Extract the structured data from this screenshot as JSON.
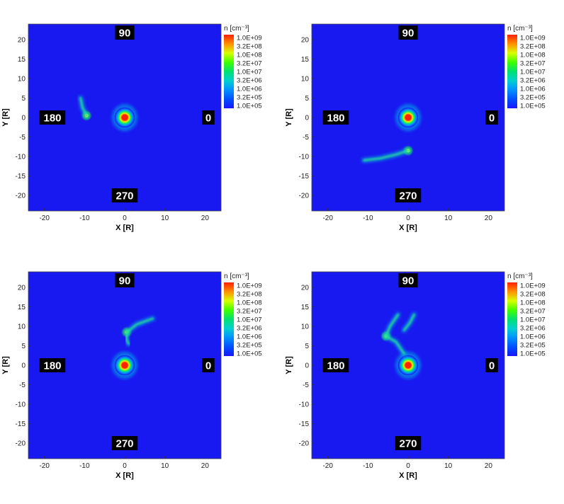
{
  "chart_data": [
    {
      "type": "heatmap",
      "xlabel": "X [R]",
      "ylabel": "Y [R]",
      "xlim": [
        -24,
        24
      ],
      "ylim": [
        -24,
        24
      ],
      "xticks": [
        -20,
        -10,
        0,
        10,
        20
      ],
      "yticks": [
        -20,
        -15,
        -10,
        -5,
        0,
        5,
        10,
        15,
        20
      ],
      "colorbar": {
        "title": "n [cm⁻³]",
        "labels": [
          "1.0E+09",
          "3.2E+08",
          "1.0E+08",
          "3.2E+07",
          "1.0E+07",
          "3.2E+06",
          "1.0E+06",
          "3.2E+05",
          "1.0E+05"
        ],
        "colors": [
          "#ff2000",
          "#ff9000",
          "#d8ff00",
          "#40ff00",
          "#00e070",
          "#00d0d0",
          "#0090ff",
          "#0050ff",
          "#1818ff"
        ]
      },
      "angle_labels": [
        "90",
        "180",
        "0",
        "270"
      ],
      "background_color": "#1818f0",
      "features": [
        {
          "kind": "source",
          "x": 0,
          "y": 0
        },
        {
          "kind": "blob",
          "x": -9.5,
          "y": 0.5
        },
        {
          "kind": "plume",
          "points": [
            [
              -9.5,
              0.5
            ],
            [
              -10.5,
              2.5
            ],
            [
              -11,
              5
            ]
          ]
        }
      ]
    },
    {
      "type": "heatmap",
      "xlabel": "X [R]",
      "ylabel": "Y [R]",
      "xlim": [
        -24,
        24
      ],
      "ylim": [
        -24,
        24
      ],
      "xticks": [
        -20,
        -10,
        0,
        10,
        20
      ],
      "yticks": [
        -20,
        -15,
        -10,
        -5,
        0,
        5,
        10,
        15,
        20
      ],
      "colorbar": {
        "title": "n [cm⁻³]",
        "labels": [
          "1.0E+09",
          "3.2E+08",
          "1.0E+08",
          "3.2E+07",
          "1.0E+07",
          "3.2E+06",
          "1.0E+06",
          "3.2E+05",
          "1.0E+05"
        ],
        "colors": [
          "#ff2000",
          "#ff9000",
          "#d8ff00",
          "#40ff00",
          "#00e070",
          "#00d0d0",
          "#0090ff",
          "#0050ff",
          "#1818ff"
        ]
      },
      "angle_labels": [
        "90",
        "180",
        "0",
        "270"
      ],
      "background_color": "#1818f0",
      "features": [
        {
          "kind": "source",
          "x": 0,
          "y": 0
        },
        {
          "kind": "blob",
          "x": 0,
          "y": -8.5
        },
        {
          "kind": "plume",
          "points": [
            [
              0,
              -8.5
            ],
            [
              -3,
              -9.5
            ],
            [
              -7,
              -10.5
            ],
            [
              -11,
              -11
            ]
          ]
        }
      ]
    },
    {
      "type": "heatmap",
      "xlabel": "X [R]",
      "ylabel": "Y [R]",
      "xlim": [
        -24,
        24
      ],
      "ylim": [
        -24,
        24
      ],
      "xticks": [
        -20,
        -10,
        0,
        10,
        20
      ],
      "yticks": [
        -20,
        -15,
        -10,
        -5,
        0,
        5,
        10,
        15,
        20
      ],
      "colorbar": {
        "title": "n [cm⁻³]",
        "labels": [
          "1.0E+09",
          "3.2E+08",
          "1.0E+08",
          "3.2E+07",
          "1.0E+07",
          "3.2E+06",
          "1.0E+06",
          "3.2E+05",
          "1.0E+05"
        ],
        "colors": [
          "#ff2000",
          "#ff9000",
          "#d8ff00",
          "#40ff00",
          "#00e070",
          "#00d0d0",
          "#0090ff",
          "#0050ff",
          "#1818ff"
        ]
      },
      "angle_labels": [
        "90",
        "180",
        "0",
        "270"
      ],
      "background_color": "#1818f0",
      "features": [
        {
          "kind": "source",
          "x": 0,
          "y": 0
        },
        {
          "kind": "blob",
          "x": 0.5,
          "y": 8.5
        },
        {
          "kind": "plume",
          "points": [
            [
              0.5,
              8.5
            ],
            [
              0.5,
              6.5
            ],
            [
              1,
              5.5
            ]
          ]
        },
        {
          "kind": "plume",
          "points": [
            [
              0.5,
              8.5
            ],
            [
              3,
              10.5
            ],
            [
              7,
              12
            ]
          ]
        }
      ]
    },
    {
      "type": "heatmap",
      "xlabel": "X [R]",
      "ylabel": "Y [R]",
      "xlim": [
        -24,
        24
      ],
      "ylim": [
        -24,
        24
      ],
      "xticks": [
        -20,
        -10,
        0,
        10,
        20
      ],
      "yticks": [
        -20,
        -15,
        -10,
        -5,
        0,
        5,
        10,
        15,
        20
      ],
      "colorbar": {
        "title": "n [cm⁻³]",
        "labels": [
          "1.0E+09",
          "3.2E+08",
          "1.0E+08",
          "3.2E+07",
          "1.0E+07",
          "3.2E+06",
          "1.0E+06",
          "3.2E+05",
          "1.0E+05"
        ],
        "colors": [
          "#ff2000",
          "#ff9000",
          "#d8ff00",
          "#40ff00",
          "#00e070",
          "#00d0d0",
          "#0090ff",
          "#0050ff",
          "#1818ff"
        ]
      },
      "angle_labels": [
        "90",
        "180",
        "0",
        "270"
      ],
      "background_color": "#1818f0",
      "features": [
        {
          "kind": "source",
          "x": 0,
          "y": 0
        },
        {
          "kind": "blob",
          "x": -5.5,
          "y": 7.5
        },
        {
          "kind": "plume",
          "points": [
            [
              -5.5,
              7.5
            ],
            [
              -4.5,
              10
            ],
            [
              -2.5,
              13
            ]
          ]
        },
        {
          "kind": "plume",
          "points": [
            [
              -5.5,
              7.5
            ],
            [
              -3,
              6
            ],
            [
              -1,
              3
            ]
          ]
        },
        {
          "kind": "plume",
          "points": [
            [
              -1,
              9
            ],
            [
              0.5,
              11
            ],
            [
              1.5,
              13
            ]
          ]
        }
      ]
    }
  ]
}
